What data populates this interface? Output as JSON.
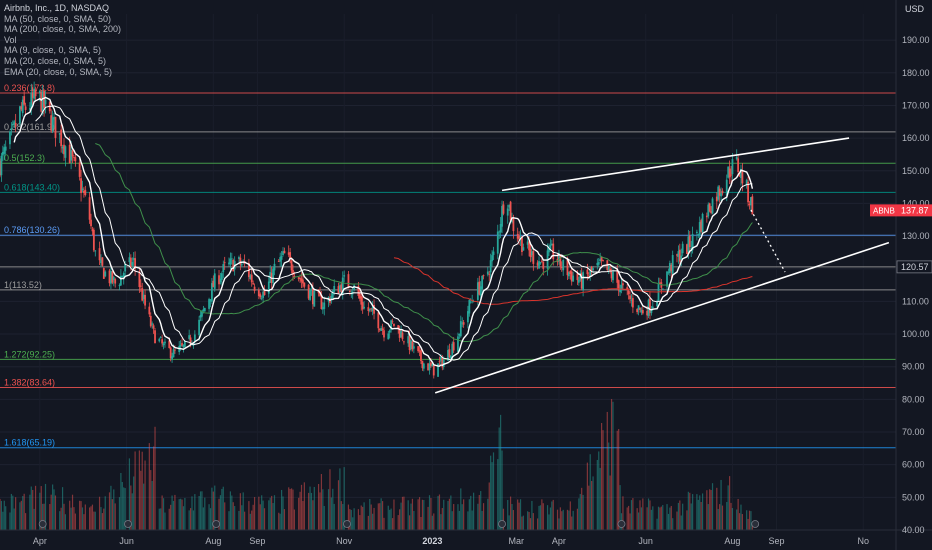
{
  "legend": {
    "title": "Airbnb, Inc., 1D, NASDAQ",
    "lines": [
      "MA (50, close, 0, SMA, 50)",
      "MA (200, close, 0, SMA, 200)",
      "Vol",
      "MA (9, close, 0, SMA, 5)",
      "MA (20, close, 0, SMA, 5)",
      "EMA (20, close, 0, SMA, 5)"
    ]
  },
  "currency": "USD",
  "ticker_badge": {
    "symbol": "ABNB",
    "price": "137.87",
    "color": "#f23645"
  },
  "price_badge": {
    "label": "120.57",
    "value": 120.57
  },
  "colors": {
    "background": "#131722",
    "up": "#26a69a",
    "down": "#ef5350",
    "ma50": "#3f8f4b",
    "ma200": "#d8342c",
    "ma_short": "#ffffff",
    "trendline": "#ffffff"
  },
  "chart_data": {
    "type": "candlestick",
    "symbol": "ABNB",
    "interval": "1D",
    "exchange": "NASDAQ",
    "y_axis": {
      "ylim": [
        40,
        198
      ],
      "ticks": [
        "190.00",
        "180.00",
        "170.00",
        "160.00",
        "150.00",
        "140.00",
        "130.00",
        "120.00",
        "110.00",
        "100.00",
        "90.00",
        "80.00",
        "70.00",
        "60.00",
        "50.00",
        "40.00"
      ],
      "tick_values": [
        190,
        180,
        170,
        160,
        150,
        140,
        130,
        120,
        110,
        100,
        90,
        80,
        70,
        60,
        50,
        40
      ]
    },
    "x_axis": {
      "ticks": [
        "Apr",
        "Jun",
        "Aug",
        "Sep",
        "Nov",
        "2023",
        "Mar",
        "Apr",
        "Jun",
        "Aug",
        "Sep",
        "No"
      ],
      "tick_day": [
        28,
        89,
        150,
        181,
        242,
        304,
        363,
        393,
        454,
        515,
        546,
        607
      ],
      "bold_tick": "2023",
      "range_days": [
        0,
        630
      ]
    },
    "fib_levels": [
      {
        "label": "0.236(173.8)",
        "value": 173.8,
        "color": "#ef5350"
      },
      {
        "label": "0.382(161.9)",
        "value": 161.9,
        "color": "#9e9e9e"
      },
      {
        "label": "0.5(152.3)",
        "value": 152.3,
        "color": "#4caf50"
      },
      {
        "label": "0.618(143.40)",
        "value": 143.4,
        "color": "#009688"
      },
      {
        "label": "0.786(130.26)",
        "value": 130.26,
        "color": "#5b9cf6"
      },
      {
        "label": "",
        "value": 120.57,
        "color": "#9e9e9e"
      },
      {
        "label": "1(113.52)",
        "value": 113.52,
        "color": "#9e9e9e"
      },
      {
        "label": "1.272(92.25)",
        "value": 92.25,
        "color": "#4caf50"
      },
      {
        "label": "1.382(83.64)",
        "value": 83.64,
        "color": "#ef5350"
      },
      {
        "label": "1.618(65.19)",
        "value": 65.19,
        "color": "#2196f3"
      }
    ],
    "price_anchors": [
      [
        0,
        152
      ],
      [
        8,
        160
      ],
      [
        14,
        168
      ],
      [
        20,
        170
      ],
      [
        27,
        173
      ],
      [
        33,
        168
      ],
      [
        40,
        162
      ],
      [
        48,
        156
      ],
      [
        55,
        148
      ],
      [
        62,
        138
      ],
      [
        68,
        122
      ],
      [
        75,
        118
      ],
      [
        82,
        115
      ],
      [
        88,
        120
      ],
      [
        94,
        122
      ],
      [
        101,
        110
      ],
      [
        108,
        100
      ],
      [
        115,
        96
      ],
      [
        122,
        94
      ],
      [
        130,
        96
      ],
      [
        137,
        100
      ],
      [
        144,
        108
      ],
      [
        151,
        116
      ],
      [
        158,
        120
      ],
      [
        165,
        122
      ],
      [
        172,
        121
      ],
      [
        179,
        115
      ],
      [
        186,
        112
      ],
      [
        193,
        120
      ],
      [
        200,
        124
      ],
      [
        207,
        120
      ],
      [
        214,
        115
      ],
      [
        221,
        111
      ],
      [
        228,
        109
      ],
      [
        235,
        113
      ],
      [
        242,
        116
      ],
      [
        249,
        114
      ],
      [
        256,
        108
      ],
      [
        263,
        106
      ],
      [
        270,
        101
      ],
      [
        277,
        103
      ],
      [
        284,
        99
      ],
      [
        291,
        95
      ],
      [
        298,
        91
      ],
      [
        305,
        89
      ],
      [
        312,
        92
      ],
      [
        319,
        97
      ],
      [
        326,
        104
      ],
      [
        333,
        112
      ],
      [
        340,
        116
      ],
      [
        347,
        124
      ],
      [
        354,
        140
      ],
      [
        356,
        144
      ],
      [
        360,
        134
      ],
      [
        367,
        128
      ],
      [
        374,
        124
      ],
      [
        381,
        122
      ],
      [
        388,
        125
      ],
      [
        395,
        121
      ],
      [
        402,
        118
      ],
      [
        409,
        116
      ],
      [
        416,
        119
      ],
      [
        423,
        121
      ],
      [
        430,
        118
      ],
      [
        437,
        114
      ],
      [
        444,
        110
      ],
      [
        451,
        107
      ],
      [
        458,
        109
      ],
      [
        465,
        115
      ],
      [
        472,
        121
      ],
      [
        479,
        125
      ],
      [
        486,
        128
      ],
      [
        493,
        134
      ],
      [
        500,
        140
      ],
      [
        507,
        145
      ],
      [
        514,
        151
      ],
      [
        518,
        152
      ],
      [
        522,
        148
      ],
      [
        525,
        144
      ],
      [
        528,
        140
      ],
      [
        531,
        137.9
      ]
    ],
    "volume_axis_max": 16,
    "volume_anchors": [
      [
        0,
        3
      ],
      [
        30,
        4
      ],
      [
        60,
        3.5
      ],
      [
        61,
        5
      ],
      [
        62,
        2
      ],
      [
        110,
        9
      ],
      [
        111,
        3
      ],
      [
        150,
        4
      ],
      [
        190,
        3
      ],
      [
        245,
        6
      ],
      [
        246,
        2.5
      ],
      [
        300,
        3
      ],
      [
        340,
        4
      ],
      [
        353,
        11
      ],
      [
        354,
        3
      ],
      [
        400,
        2.5
      ],
      [
        435,
        14
      ],
      [
        436,
        6
      ],
      [
        437,
        3
      ],
      [
        470,
        2.5
      ],
      [
        516,
        5
      ],
      [
        517,
        3
      ],
      [
        531,
        1.5
      ]
    ],
    "earnings_markers_day": [
      30,
      90,
      152,
      244,
      353,
      437,
      531
    ],
    "trendlines": [
      {
        "from": [
          353,
          144
        ],
        "to": [
          597,
          160
        ]
      },
      {
        "from": [
          306,
          82
        ],
        "to": [
          625,
          128
        ]
      },
      {
        "from": [
          528,
          138
        ],
        "to": [
          552,
          119
        ],
        "dashed": true
      }
    ]
  }
}
